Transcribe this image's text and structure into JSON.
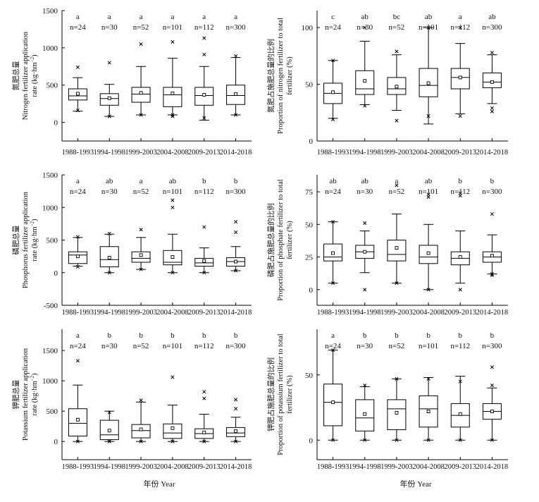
{
  "figure": {
    "xlabel": "年份 Year",
    "categories": [
      "1988-1993",
      "1994-1998",
      "1999-2003",
      "2004-2008",
      "2009-2013",
      "2014-2018"
    ]
  },
  "chart_data": [
    {
      "id": "nitrogen_rate",
      "type": "boxplot",
      "ylabel_zh": "氮肥总量",
      "ylabel_en": "Nitrogen fertilizer application",
      "ylabel_unit": "rate (kg·hm",
      "ylim": [
        -250,
        1500
      ],
      "yticks": [
        0,
        500,
        1000,
        1500
      ],
      "letters": [
        "a",
        "a",
        "a",
        "a",
        "a",
        "a"
      ],
      "n": [
        "n=24",
        "n=30",
        "n=52",
        "n=101",
        "n=112",
        "n=300"
      ],
      "boxes": [
        {
          "whislo": 150,
          "q1": 300,
          "med": 355,
          "q3": 450,
          "whishi": 600,
          "mean": 385,
          "fliers": [
            740,
            160
          ]
        },
        {
          "whislo": 80,
          "q1": 230,
          "med": 320,
          "q3": 385,
          "whishi": 510,
          "mean": 325,
          "fliers": [
            800,
            80
          ]
        },
        {
          "whislo": 100,
          "q1": 270,
          "med": 380,
          "q3": 470,
          "whishi": 750,
          "mean": 395,
          "fliers": [
            1050,
            100
          ]
        },
        {
          "whislo": 100,
          "q1": 210,
          "med": 370,
          "q3": 470,
          "whishi": 860,
          "mean": 390,
          "fliers": [
            1080,
            80,
            100
          ]
        },
        {
          "whislo": 30,
          "q1": 230,
          "med": 360,
          "q3": 470,
          "whishi": 750,
          "mean": 370,
          "fliers": [
            1130,
            910,
            60
          ]
        },
        {
          "whislo": 100,
          "q1": 240,
          "med": 360,
          "q3": 500,
          "whishi": 870,
          "mean": 380,
          "fliers": [
            890,
            100
          ]
        }
      ]
    },
    {
      "id": "nitrogen_proportion",
      "type": "boxplot",
      "ylabel_zh": "氮肥占施肥总量的比例",
      "ylabel_en": "Proportion of nitrogen fertilizer to total",
      "ylabel_unit": "fertilizer (%)",
      "ylim": [
        0,
        115
      ],
      "yticks": [
        0,
        50,
        100
      ],
      "letters": [
        "c",
        "ab",
        "bc",
        "ab",
        "a",
        "ab"
      ],
      "n": [
        "n=24",
        "n=30",
        "n=52",
        "n=101",
        "n=112",
        "n=300"
      ],
      "boxes": [
        {
          "whislo": 20,
          "q1": 33,
          "med": 42,
          "q3": 51,
          "whishi": 71,
          "mean": 43,
          "fliers": [
            71,
            19
          ]
        },
        {
          "whislo": 32,
          "q1": 41,
          "med": 46,
          "q3": 62,
          "whishi": 88,
          "mean": 53,
          "fliers": [
            100,
            31
          ]
        },
        {
          "whislo": 27,
          "q1": 41,
          "med": 46,
          "q3": 56,
          "whishi": 76,
          "mean": 48,
          "fliers": [
            79,
            18
          ]
        },
        {
          "whislo": 15,
          "q1": 39,
          "med": 49,
          "q3": 64,
          "whishi": 100,
          "mean": 51,
          "fliers": [
            100,
            22
          ]
        },
        {
          "whislo": 24,
          "q1": 46,
          "med": 56,
          "q3": 64,
          "whishi": 86,
          "mean": 56,
          "fliers": [
            100,
            22
          ]
        },
        {
          "whislo": 33,
          "q1": 47,
          "med": 52,
          "q3": 60,
          "whishi": 76,
          "mean": 52,
          "fliers": [
            78,
            29,
            26
          ]
        }
      ]
    },
    {
      "id": "phosphorus_rate",
      "type": "boxplot",
      "ylabel_zh": "磷肥总量",
      "ylabel_en": "Phosphorus fertilizer application",
      "ylabel_unit": "rate (kg·hm",
      "ylim": [
        -500,
        1500
      ],
      "yticks": [
        -500,
        0,
        500,
        1000,
        1500
      ],
      "letters": [
        "a",
        "ab",
        "a",
        "ab",
        "b",
        "b"
      ],
      "n": [
        "n=24",
        "n=30",
        "n=52",
        "n=101",
        "n=112",
        "n=300"
      ],
      "boxes": [
        {
          "whislo": 100,
          "q1": 140,
          "med": 270,
          "q3": 320,
          "whishi": 540,
          "mean": 250,
          "fliers": [
            550,
            90
          ]
        },
        {
          "whislo": 0,
          "q1": 90,
          "med": 200,
          "q3": 400,
          "whishi": 590,
          "mean": 230,
          "fliers": [
            600,
            0
          ]
        },
        {
          "whislo": 50,
          "q1": 160,
          "med": 220,
          "q3": 320,
          "whishi": 540,
          "mean": 270,
          "fliers": [
            660,
            50
          ]
        },
        {
          "whislo": 0,
          "q1": 120,
          "med": 160,
          "q3": 340,
          "whishi": 590,
          "mean": 240,
          "fliers": [
            1110,
            1000,
            0
          ]
        },
        {
          "whislo": 0,
          "q1": 100,
          "med": 150,
          "q3": 220,
          "whishi": 380,
          "mean": 180,
          "fliers": [
            700,
            0
          ]
        },
        {
          "whislo": 30,
          "q1": 100,
          "med": 170,
          "q3": 230,
          "whishi": 400,
          "mean": 170,
          "fliers": [
            780,
            620,
            30
          ]
        }
      ]
    },
    {
      "id": "phosphorus_proportion",
      "type": "boxplot",
      "ylabel_zh": "磷肥占施肥总量的比例",
      "ylabel_en": "Proportion of phosphate fertilizer to total",
      "ylabel_unit": "fertilizer (%)",
      "ylim": [
        -12,
        88
      ],
      "yticks": [
        0,
        25,
        50,
        75
      ],
      "letters": [
        "ab",
        "ab",
        "a",
        "ab",
        "b",
        "b"
      ],
      "n": [
        "n=24",
        "n=30",
        "n=52",
        "n=101",
        "n=112",
        "n=300"
      ],
      "boxes": [
        {
          "whislo": 5,
          "q1": 22,
          "med": 25,
          "q3": 35,
          "whishi": 52,
          "mean": 28,
          "fliers": [
            52,
            5
          ]
        },
        {
          "whislo": 13,
          "q1": 24,
          "med": 29,
          "q3": 34,
          "whishi": 45,
          "mean": 29,
          "fliers": [
            51,
            0
          ]
        },
        {
          "whislo": 5,
          "q1": 22,
          "med": 27,
          "q3": 38,
          "whishi": 58,
          "mean": 32,
          "fliers": [
            80,
            5
          ]
        },
        {
          "whislo": 0,
          "q1": 20,
          "med": 25,
          "q3": 34,
          "whishi": 50,
          "mean": 28,
          "fliers": [
            73,
            71,
            0
          ]
        },
        {
          "whislo": 5,
          "q1": 19,
          "med": 24,
          "q3": 29,
          "whishi": 45,
          "mean": 25,
          "fliers": [
            74,
            72,
            0
          ]
        },
        {
          "whislo": 12,
          "q1": 21,
          "med": 25,
          "q3": 29,
          "whishi": 42,
          "mean": 26,
          "fliers": [
            58,
            12,
            11
          ]
        }
      ]
    },
    {
      "id": "potassium_rate",
      "type": "boxplot",
      "ylabel_zh": "钾肥总量",
      "ylabel_en": "Potassium fertilizer application",
      "ylabel_unit": "rate (kg·hm",
      "ylim": [
        -300,
        1850
      ],
      "yticks": [
        0,
        500,
        1000,
        1500
      ],
      "letters": [
        "a",
        "b",
        "b",
        "b",
        "b",
        "b"
      ],
      "n": [
        "n=24",
        "n=30",
        "n=52",
        "n=101",
        "n=112",
        "n=300"
      ],
      "boxes": [
        {
          "whislo": 0,
          "q1": 90,
          "med": 300,
          "q3": 540,
          "whishi": 930,
          "mean": 360,
          "fliers": [
            1330,
            0
          ]
        },
        {
          "whislo": 0,
          "q1": 30,
          "med": 110,
          "q3": 350,
          "whishi": 500,
          "mean": 180,
          "fliers": [
            480,
            0
          ]
        },
        {
          "whislo": 0,
          "q1": 60,
          "med": 180,
          "q3": 280,
          "whishi": 650,
          "mean": 200,
          "fliers": [
            680,
            0
          ]
        },
        {
          "whislo": 0,
          "q1": 50,
          "med": 140,
          "q3": 290,
          "whishi": 600,
          "mean": 220,
          "fliers": [
            1060,
            0
          ]
        },
        {
          "whislo": 0,
          "q1": 50,
          "med": 130,
          "q3": 210,
          "whishi": 450,
          "mean": 150,
          "fliers": [
            820,
            710,
            0
          ]
        },
        {
          "whislo": 0,
          "q1": 80,
          "med": 140,
          "q3": 230,
          "whishi": 400,
          "mean": 170,
          "fliers": [
            690,
            540,
            0
          ]
        }
      ]
    },
    {
      "id": "potassium_proportion",
      "type": "boxplot",
      "ylabel_zh": "钾肥占施肥总量的比例",
      "ylabel_en": "Proportion of potassium fertilizer to total",
      "ylabel_unit": "fertilizer (%)",
      "ylim": [
        -15,
        85
      ],
      "yticks": [
        0,
        50
      ],
      "letters": [
        "a",
        "b",
        "b",
        "b",
        "b",
        "b"
      ],
      "n": [
        "n=24",
        "n=30",
        "n=52",
        "n=101",
        "n=112",
        "n=300"
      ],
      "boxes": [
        {
          "whislo": 0,
          "q1": 11,
          "med": 29,
          "q3": 43,
          "whishi": 69,
          "mean": 29,
          "fliers": [
            69,
            0
          ]
        },
        {
          "whislo": 0,
          "q1": 7,
          "med": 17,
          "q3": 31,
          "whishi": 41,
          "mean": 20,
          "fliers": [
            42,
            0
          ]
        },
        {
          "whislo": 0,
          "q1": 8,
          "med": 24,
          "q3": 31,
          "whishi": 47,
          "mean": 21,
          "fliers": [
            47,
            0
          ]
        },
        {
          "whislo": 0,
          "q1": 10,
          "med": 24,
          "q3": 34,
          "whishi": 48,
          "mean": 22,
          "fliers": [
            47,
            0
          ]
        },
        {
          "whislo": 0,
          "q1": 10,
          "med": 19,
          "q3": 28,
          "whishi": 49,
          "mean": 20,
          "fliers": [
            45,
            0
          ]
        },
        {
          "whislo": 0,
          "q1": 16,
          "med": 22,
          "q3": 28,
          "whishi": 40,
          "mean": 22,
          "fliers": [
            56,
            42,
            0
          ]
        }
      ]
    }
  ]
}
